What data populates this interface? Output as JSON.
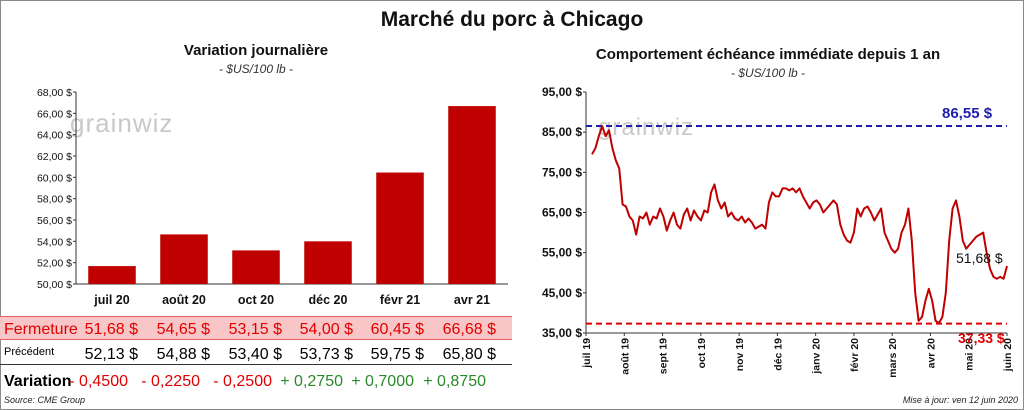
{
  "title": "Marché du porc à Chicago",
  "left_panel": {
    "title": "Variation  journalière",
    "unit": "- $US/100 lb -",
    "watermark": "grainwiz"
  },
  "right_panel": {
    "title": "Comportement  échéance immédiate depuis 1 an",
    "unit": "- $US/100 lb -",
    "watermark": "grainwiz",
    "high_label": "86,55 $",
    "low_label": "37,33 $",
    "last_label": "51,68 $"
  },
  "table": {
    "row_labels": {
      "close": "Fermeture",
      "previous": "Précédent",
      "change": "Variation"
    },
    "close": [
      "51,68  $",
      "54,65  $",
      "53,15  $",
      "54,00  $",
      "60,45  $",
      "66,68  $"
    ],
    "previous": [
      "52,13  $",
      "54,88  $",
      "53,40  $",
      "53,73  $",
      "59,75  $",
      "65,80  $"
    ],
    "change": [
      "- 0,4500",
      "- 0,2250",
      "- 0,2500",
      "+ 0,2750",
      "+ 0,7000",
      "+ 0,8750"
    ]
  },
  "footer": {
    "source": "Source: CME Group",
    "updated": "Mise à jour: ven 12 juin 2020"
  },
  "colors": {
    "bar": "#c00000",
    "line": "#c00000",
    "high": "#1f1fae",
    "low": "#e00000",
    "close_row_bg": "#f8c6c6",
    "negative": "#e00000",
    "positive": "#2a8a2a"
  },
  "chart_data": [
    {
      "type": "bar",
      "categories": [
        "juil 20",
        "août 20",
        "oct 20",
        "déc 20",
        "févr 21",
        "avr 21"
      ],
      "values": [
        51.68,
        54.65,
        53.15,
        54.0,
        60.45,
        66.68
      ],
      "ylim": [
        50,
        68
      ],
      "yticks": [
        50,
        52,
        54,
        56,
        58,
        60,
        62,
        64,
        66,
        68
      ],
      "ytick_labels": [
        "50,00 $",
        "52,00 $",
        "54,00 $",
        "56,00 $",
        "58,00 $",
        "60,00 $",
        "62,00 $",
        "64,00 $",
        "66,00 $",
        "68,00 $"
      ],
      "title": "Variation  journalière",
      "ylabel": "- $US/100 lb -",
      "grid": false
    },
    {
      "type": "line",
      "x_tick_labels": [
        "juil 19",
        "août 19",
        "sept 19",
        "oct 19",
        "nov 19",
        "déc 19",
        "janv 20",
        "févr 20",
        "mars 20",
        "avr 20",
        "mai 20",
        "juin 20"
      ],
      "ylim": [
        35,
        95
      ],
      "yticks": [
        35,
        45,
        55,
        65,
        75,
        85,
        95
      ],
      "ytick_labels": [
        "35,00 $",
        "45,00 $",
        "55,00 $",
        "65,00 $",
        "75,00 $",
        "85,00 $",
        "95,00 $"
      ],
      "series": [
        {
          "values": [
            79.5,
            81,
            84,
            86.5,
            84,
            85.5,
            81,
            78,
            76,
            67,
            66.5,
            64,
            63,
            59.5,
            64,
            63.5,
            65,
            62,
            64,
            63.5,
            66,
            64,
            60.5,
            63,
            65,
            62,
            61,
            64.5,
            66,
            63,
            65.5,
            64,
            63,
            65.5,
            65,
            70,
            72,
            68,
            66,
            67.5,
            64,
            65,
            63.5,
            63,
            64,
            62.5,
            63.5,
            62.5,
            61,
            61.5,
            62,
            61,
            67.5,
            70,
            69,
            69,
            71,
            71,
            70.5,
            71,
            70,
            71,
            69,
            67.5,
            66,
            67.5,
            68,
            67,
            65,
            66,
            67,
            68,
            67,
            62,
            59.5,
            58,
            57.5,
            60,
            66,
            64,
            66,
            66.5,
            65,
            63,
            64.5,
            66,
            60,
            58,
            56,
            55,
            56,
            60,
            62,
            66,
            58,
            45,
            38,
            39,
            43,
            46,
            43,
            38,
            37.5,
            39,
            45,
            58,
            66,
            68,
            64,
            58,
            56,
            57,
            58,
            59,
            59.5,
            60,
            55,
            51,
            49,
            48.5,
            49,
            48.5,
            51.68
          ]
        },
        {
          "name": "86,55 $",
          "values": [
            86.55
          ]
        },
        {
          "name": "37,33 $",
          "values": [
            37.33
          ]
        }
      ],
      "title": "Comportement  échéance immédiate depuis 1 an",
      "ylabel": "- $US/100 lb -",
      "grid": false
    }
  ]
}
